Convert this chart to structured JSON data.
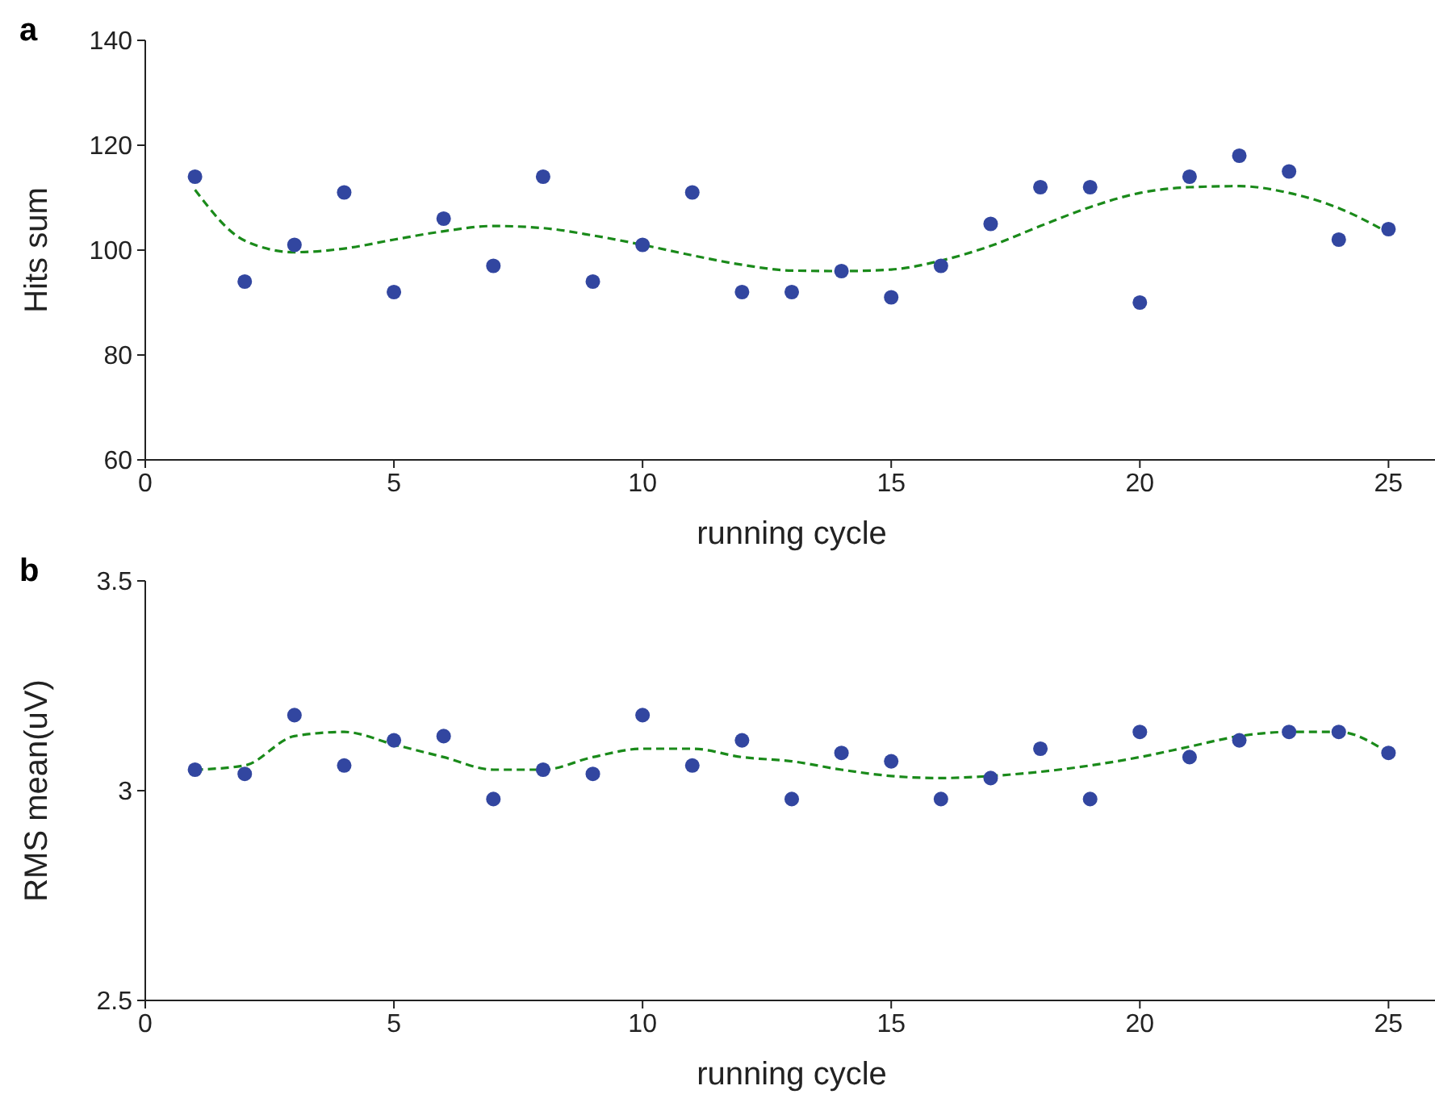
{
  "chart_data": [
    {
      "type": "scatter",
      "annotations": [
        "a"
      ],
      "xlabel": "running cycle",
      "ylabel": "Hits sum",
      "xlim": [
        0,
        26
      ],
      "xticks": [
        0,
        5,
        10,
        15,
        20,
        25
      ],
      "ylim": [
        60,
        140
      ],
      "yticks": [
        60,
        80,
        100,
        120,
        140
      ],
      "grid": false,
      "legend": false,
      "series": [
        {
          "type": "scatter",
          "color": "#3246a0",
          "marker": "circle",
          "x": [
            1,
            2,
            3,
            4,
            5,
            6,
            7,
            8,
            9,
            10,
            11,
            12,
            13,
            14,
            15,
            16,
            17,
            18,
            19,
            20,
            21,
            22,
            23,
            24,
            25
          ],
          "values": [
            114,
            94,
            101,
            111,
            92,
            106,
            97,
            114,
            94,
            101,
            111,
            92,
            92,
            96,
            91,
            97,
            105,
            112,
            112,
            90,
            114,
            118,
            115,
            102,
            104
          ]
        },
        {
          "type": "line",
          "color": "#1a8a1a",
          "marker": "none",
          "line_style": "dashed",
          "x": [
            1,
            2,
            3,
            4,
            5,
            6,
            7,
            8,
            9,
            10,
            11,
            12,
            13,
            14,
            15,
            16,
            17,
            18,
            19,
            20,
            21,
            22,
            23,
            24,
            25
          ],
          "values": [
            111.5,
            101.8,
            99.6,
            100.3,
            102,
            103.6,
            104.6,
            104.2,
            102.8,
            101,
            99,
            97.2,
            96.1,
            96,
            96.3,
            98,
            100.8,
            104.6,
            108.2,
            110.9,
            112,
            112.2,
            110.9,
            108,
            103.3
          ]
        }
      ]
    },
    {
      "type": "scatter",
      "annotations": [
        "b"
      ],
      "xlabel": "running cycle",
      "ylabel": "RMS mean(uV)",
      "xlim": [
        0,
        26
      ],
      "xticks": [
        0,
        5,
        10,
        15,
        20,
        25
      ],
      "ylim": [
        2.5,
        3.5
      ],
      "yticks": [
        2.5,
        3,
        3.5
      ],
      "grid": false,
      "legend": false,
      "series": [
        {
          "type": "scatter",
          "color": "#3246a0",
          "marker": "circle",
          "x": [
            1,
            2,
            3,
            4,
            5,
            6,
            7,
            8,
            9,
            10,
            11,
            12,
            13,
            14,
            15,
            16,
            17,
            18,
            19,
            20,
            21,
            22,
            23,
            24,
            25
          ],
          "values": [
            3.05,
            3.04,
            3.18,
            3.06,
            3.12,
            3.13,
            2.98,
            3.05,
            3.04,
            3.18,
            3.06,
            3.12,
            2.98,
            3.09,
            3.07,
            2.98,
            3.03,
            3.1,
            2.98,
            3.14,
            3.08,
            3.12,
            3.14,
            3.14,
            3.09
          ]
        },
        {
          "type": "line",
          "color": "#1a8a1a",
          "marker": "none",
          "line_style": "dashed",
          "x": [
            1,
            2,
            3,
            4,
            5,
            6,
            7,
            8,
            9,
            10,
            11,
            12,
            13,
            14,
            15,
            16,
            17,
            18,
            19,
            20,
            21,
            22,
            23,
            24,
            25
          ],
          "values": [
            3.05,
            3.06,
            3.13,
            3.14,
            3.11,
            3.08,
            3.05,
            3.05,
            3.08,
            3.1,
            3.1,
            3.08,
            3.07,
            3.05,
            3.035,
            3.03,
            3.035,
            3.045,
            3.06,
            3.08,
            3.105,
            3.13,
            3.14,
            3.14,
            3.09
          ]
        }
      ]
    }
  ]
}
